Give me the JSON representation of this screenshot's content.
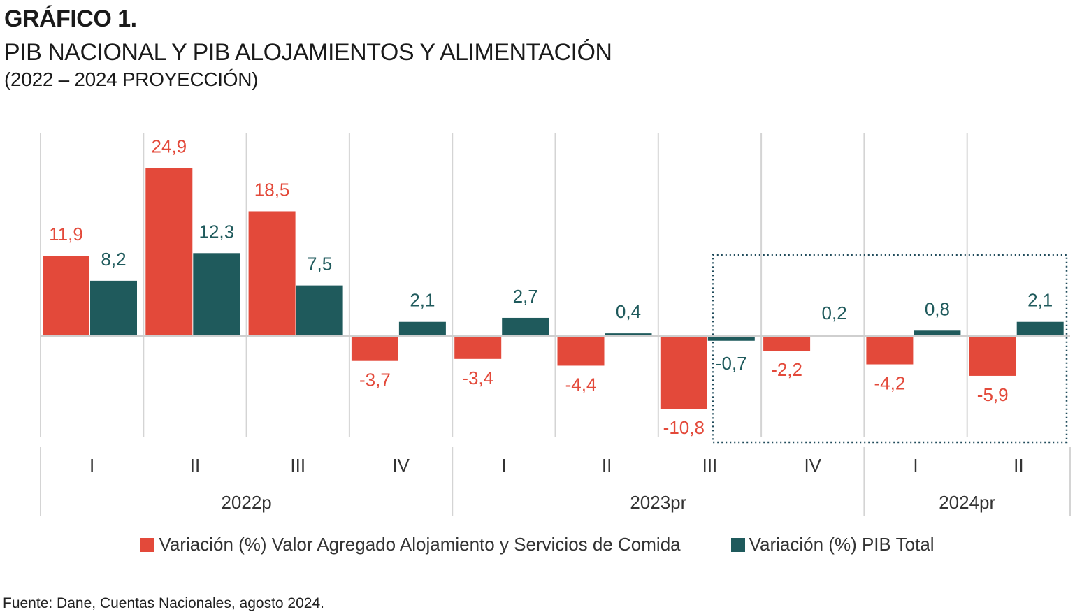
{
  "heading": "GRÁFICO 1.",
  "chart_data": {
    "type": "bar",
    "title": "PIB  NACIONAL Y  PIB ALOJAMIENTOS Y ALIMENTACIÓN",
    "subtitle": "(2022 – 2024 PROYECCIÓN)",
    "categories": [
      "I",
      "II",
      "III",
      "IV",
      "I",
      "II",
      "III",
      "IV",
      "I",
      "II"
    ],
    "groups": [
      {
        "label": "2022p",
        "count": 4
      },
      {
        "label": "2023pr",
        "count": 4
      },
      {
        "label": "2024pr",
        "count": 2
      }
    ],
    "series": [
      {
        "name": "Variación (%) Valor Agregado Alojamiento y Servicios de Comida",
        "color": "#e3493a",
        "values": [
          11.9,
          24.9,
          18.5,
          -3.7,
          -3.4,
          -4.4,
          -10.8,
          -2.2,
          -4.2,
          -5.9
        ],
        "labels": [
          "11,9",
          "24,9",
          "18,5",
          "-3,7",
          "-3,4",
          "-4,4",
          "-10,8",
          "-2,2",
          "-4,2",
          "-5,9"
        ]
      },
      {
        "name": "Variación (%) PIB Total",
        "color": "#1f5a5c",
        "values": [
          8.2,
          12.3,
          7.5,
          2.1,
          2.7,
          0.4,
          -0.7,
          0.2,
          0.8,
          2.1
        ],
        "labels": [
          "8,2",
          "12,3",
          "7,5",
          "2,1",
          "2,7",
          "0,4",
          "-0,7",
          "0,2",
          "0,8",
          "2,1"
        ]
      }
    ],
    "ylim": [
      -15,
      30
    ],
    "xlabel": "",
    "ylabel": "",
    "highlight": "dotted box over 2023pr III – 2024pr II",
    "legend_position": "bottom"
  },
  "source": "Fuente: Dane, Cuentas Nacionales, agosto 2024."
}
